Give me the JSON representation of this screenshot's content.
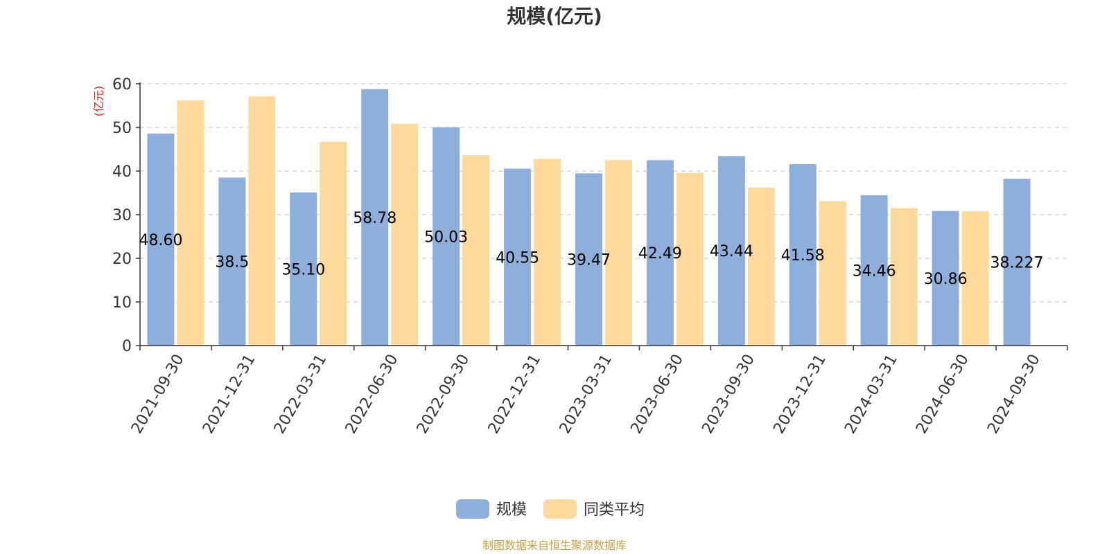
{
  "chart_data": {
    "type": "bar",
    "title": "规模(亿元)",
    "y_unit": "(亿元)",
    "ylim": [
      0,
      60
    ],
    "yticks": [
      0,
      10,
      20,
      30,
      40,
      50,
      60
    ],
    "grid": true,
    "legend_position": "bottom-center",
    "categories": [
      "2021-09-30",
      "2021-12-31",
      "2022-03-31",
      "2022-06-30",
      "2022-09-30",
      "2022-12-31",
      "2023-03-31",
      "2023-06-30",
      "2023-09-30",
      "2023-12-31",
      "2024-03-31",
      "2024-06-30",
      "2024-09-30"
    ],
    "series": [
      {
        "name": "规模",
        "color": "#8eaedb",
        "values": [
          48.6,
          38.5,
          35.1,
          58.78,
          50.03,
          40.55,
          39.47,
          42.49,
          43.44,
          41.58,
          34.46,
          30.86,
          38.227
        ],
        "data_labels": [
          "48.60",
          "38.5",
          "35.10",
          "58.78",
          "50.03",
          "40.55",
          "39.47",
          "42.49",
          "43.44",
          "41.58",
          "34.46",
          "30.86",
          "38.227"
        ]
      },
      {
        "name": "同类平均",
        "color": "#fdd99b",
        "values": [
          56.2,
          57.1,
          46.7,
          50.8,
          43.6,
          42.8,
          42.5,
          39.6,
          36.2,
          33.1,
          31.5,
          30.8,
          null
        ]
      }
    ],
    "source": "制图数据来自恒生聚源数据库",
    "source_color": "#c8a046",
    "unit_color": "#e02020"
  }
}
